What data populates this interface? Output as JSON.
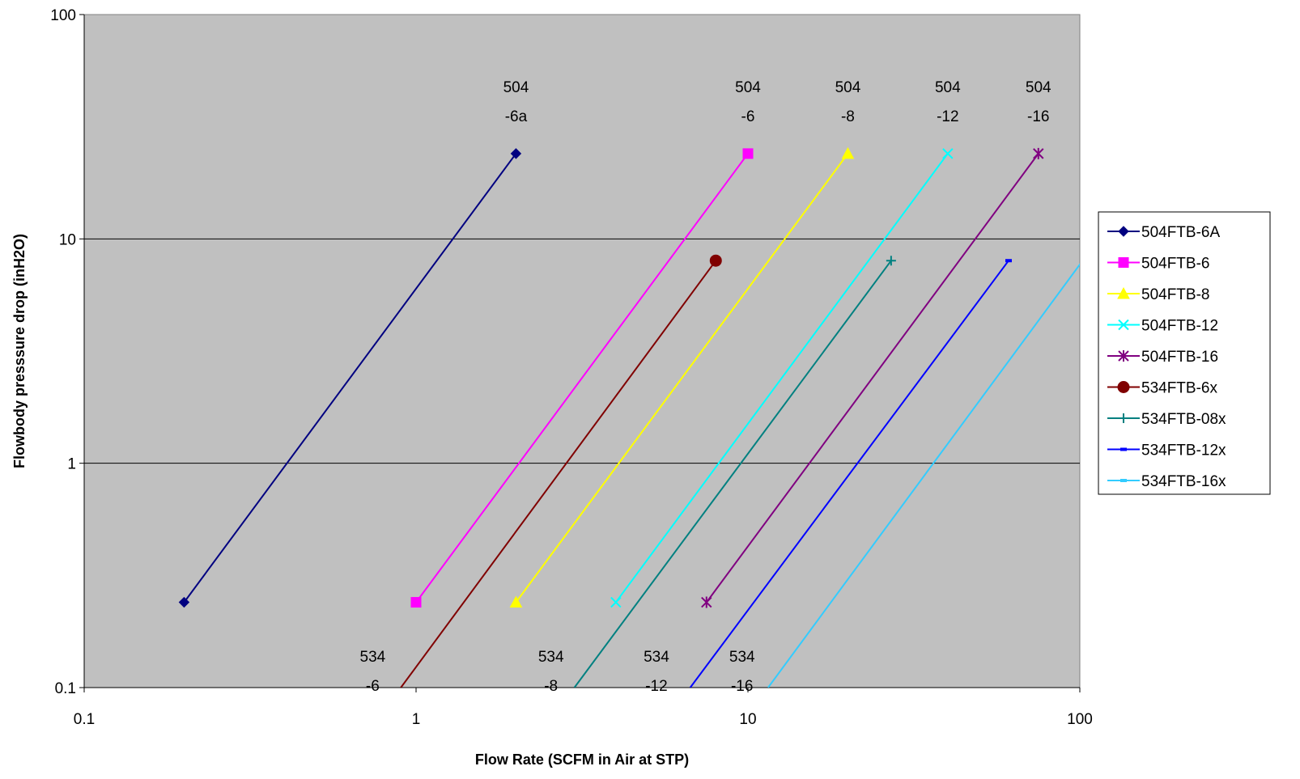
{
  "chart_data": {
    "type": "line",
    "title": "",
    "xlabel": "Flow Rate (SCFM in Air at STP)",
    "ylabel": "Flowbody presssure drop (inH2O)",
    "xscale": "log",
    "yscale": "log",
    "xlim": [
      0.1,
      100
    ],
    "ylim": [
      0.1,
      100
    ],
    "x_ticks": [
      "0.1",
      "1",
      "10",
      "100"
    ],
    "y_ticks": [
      "0.1",
      "1",
      "10",
      "100"
    ],
    "grid": "horizontal major",
    "plot_background": "#C0C0C0",
    "legend_position": "right",
    "series": [
      {
        "name": "504FTB-6A",
        "color": "#000080",
        "marker": "diamond",
        "points": [
          [
            0.2,
            0.24
          ],
          [
            2,
            24
          ]
        ]
      },
      {
        "name": "504FTB-6",
        "color": "#FF00FF",
        "marker": "square",
        "points": [
          [
            1,
            0.24
          ],
          [
            10,
            24
          ]
        ]
      },
      {
        "name": "504FTB-8",
        "color": "#FFFF00",
        "marker": "triangle",
        "points": [
          [
            2,
            0.24
          ],
          [
            20,
            24
          ]
        ]
      },
      {
        "name": "504FTB-12",
        "color": "#00FFFF",
        "marker": "x",
        "points": [
          [
            4,
            0.24
          ],
          [
            40,
            24
          ]
        ]
      },
      {
        "name": "504FTB-16",
        "color": "#800080",
        "marker": "star",
        "points": [
          [
            7.5,
            0.24
          ],
          [
            75,
            24
          ]
        ]
      },
      {
        "name": "534FTB-6x",
        "color": "#800000",
        "marker": "circle",
        "points": [
          [
            0.9,
            0.1
          ],
          [
            8,
            8
          ]
        ]
      },
      {
        "name": "534FTB-08x",
        "color": "#008080",
        "marker": "plus",
        "points": [
          [
            3,
            0.1
          ],
          [
            27,
            8
          ]
        ]
      },
      {
        "name": "534FTB-12x",
        "color": "#0000FF",
        "marker": "dash",
        "points": [
          [
            6.7,
            0.1
          ],
          [
            61,
            8
          ]
        ]
      },
      {
        "name": "534FTB-16x",
        "color": "#33CCFF",
        "marker": "dash",
        "points": [
          [
            11.5,
            0.1
          ],
          [
            102,
            8
          ]
        ]
      }
    ],
    "annotations": [
      {
        "lines": [
          "504",
          "-6a"
        ],
        "x": 2,
        "y": 24
      },
      {
        "lines": [
          "504",
          "-6"
        ],
        "x": 10,
        "y": 24
      },
      {
        "lines": [
          "504",
          "-8"
        ],
        "x": 20,
        "y": 24
      },
      {
        "lines": [
          "504",
          "-12"
        ],
        "x": 40,
        "y": 24
      },
      {
        "lines": [
          "504",
          "-16"
        ],
        "x": 75,
        "y": 24
      },
      {
        "lines": [
          "534",
          "-6"
        ],
        "x": 0.74,
        "y": 0.1
      },
      {
        "lines": [
          "534",
          "-8"
        ],
        "x": 2.55,
        "y": 0.1
      },
      {
        "lines": [
          "534",
          "-12"
        ],
        "x": 5.3,
        "y": 0.1
      },
      {
        "lines": [
          "534",
          "-16"
        ],
        "x": 9.6,
        "y": 0.1
      }
    ]
  }
}
